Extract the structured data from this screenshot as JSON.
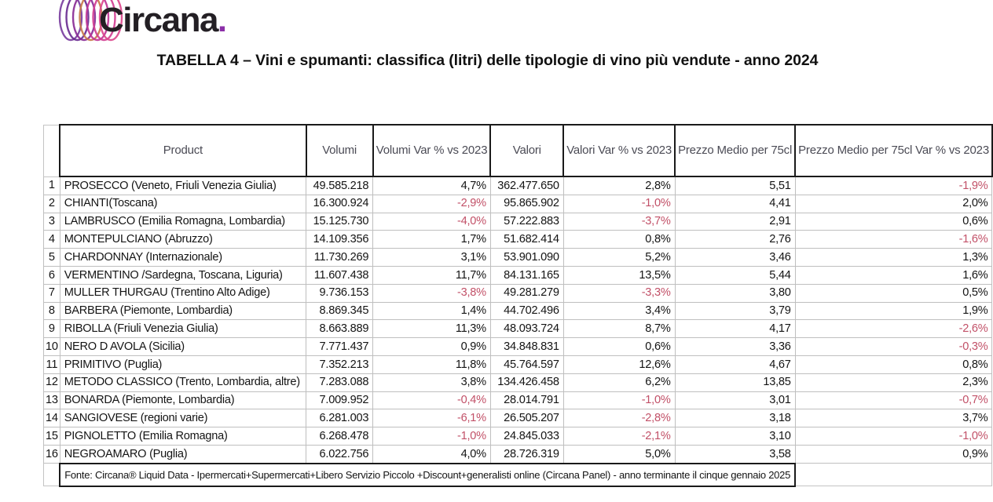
{
  "logo": {
    "brand": "Circana",
    "dot": ".",
    "ring_colors": [
      "#7b3fa0",
      "#6a2c91",
      "#8a2d96",
      "#c87a4a",
      "#c13697",
      "#d13f93",
      "#dc4a8e"
    ],
    "text_color": "#231f24",
    "dot_color": "#8b2fa8"
  },
  "title": "TABELLA 4 – Vini e spumanti: classifica (litri) delle tipologie di vino più vendute - anno 2024",
  "colors": {
    "negative_value": "#c25168",
    "header_text": "#4b4b55",
    "grid_line": "#bfbfbf",
    "heavy_border": "#1a1a1a"
  },
  "table": {
    "columns": [
      "Product",
      "Volumi",
      "Volumi Var % vs 2023",
      "Valori",
      "Valori Var % vs 2023",
      "Prezzo Medio per 75cl",
      "Prezzo Medio per 75cl Var % vs 2023"
    ],
    "rows": [
      {
        "rank": "1",
        "product": "PROSECCO  (Veneto, Friuli Venezia Giulia)",
        "volumi": "49.585.218",
        "volumi_var": "4,7%",
        "valori": "362.477.650",
        "valori_var": "2,8%",
        "prezzo": "5,51",
        "prezzo_var": "-1,9%"
      },
      {
        "rank": "2",
        "product": "CHIANTI(Toscana)",
        "volumi": "16.300.924",
        "volumi_var": "-2,9%",
        "valori": "95.865.902",
        "valori_var": "-1,0%",
        "prezzo": "4,41",
        "prezzo_var": "2,0%"
      },
      {
        "rank": "3",
        "product": "LAMBRUSCO (Emilia Romagna, Lombardia)",
        "volumi": "15.125.730",
        "volumi_var": "-4,0%",
        "valori": "57.222.883",
        "valori_var": "-3,7%",
        "prezzo": "2,91",
        "prezzo_var": "0,6%"
      },
      {
        "rank": "4",
        "product": "MONTEPULCIANO (Abruzzo)",
        "volumi": "14.109.356",
        "volumi_var": "1,7%",
        "valori": "51.682.414",
        "valori_var": "0,8%",
        "prezzo": "2,76",
        "prezzo_var": "-1,6%"
      },
      {
        "rank": "5",
        "product": "CHARDONNAY (Internazionale)",
        "volumi": "11.730.269",
        "volumi_var": "3,1%",
        "valori": "53.901.090",
        "valori_var": "5,2%",
        "prezzo": "3,46",
        "prezzo_var": "1,3%"
      },
      {
        "rank": "6",
        "product": "VERMENTINO /Sardegna, Toscana, Liguria)",
        "volumi": "11.607.438",
        "volumi_var": "11,7%",
        "valori": "84.131.165",
        "valori_var": "13,5%",
        "prezzo": "5,44",
        "prezzo_var": "1,6%"
      },
      {
        "rank": "7",
        "product": "MULLER THURGAU (Trentino Alto Adige)",
        "volumi": "9.736.153",
        "volumi_var": "-3,8%",
        "valori": "49.281.279",
        "valori_var": "-3,3%",
        "prezzo": "3,80",
        "prezzo_var": "0,5%"
      },
      {
        "rank": "8",
        "product": "BARBERA (Piemonte, Lombardia)",
        "volumi": "8.869.345",
        "volumi_var": "1,4%",
        "valori": "44.702.496",
        "valori_var": "3,4%",
        "prezzo": "3,79",
        "prezzo_var": "1,9%"
      },
      {
        "rank": "9",
        "product": "RIBOLLA (Friuli Venezia Giulia)",
        "volumi": "8.663.889",
        "volumi_var": "11,3%",
        "valori": "48.093.724",
        "valori_var": "8,7%",
        "prezzo": "4,17",
        "prezzo_var": "-2,6%"
      },
      {
        "rank": "10",
        "product": "NERO D AVOLA (Sicilia)",
        "volumi": "7.771.437",
        "volumi_var": "0,9%",
        "valori": "34.848.831",
        "valori_var": "0,6%",
        "prezzo": "3,36",
        "prezzo_var": "-0,3%"
      },
      {
        "rank": "11",
        "product": "PRIMITIVO (Puglia)",
        "volumi": "7.352.213",
        "volumi_var": "11,8%",
        "valori": "45.764.597",
        "valori_var": "12,6%",
        "prezzo": "4,67",
        "prezzo_var": "0,8%"
      },
      {
        "rank": "12",
        "product": "METODO CLASSICO (Trento, Lombardia, altre)",
        "volumi": "7.283.088",
        "volumi_var": "3,8%",
        "valori": "134.426.458",
        "valori_var": "6,2%",
        "prezzo": "13,85",
        "prezzo_var": "2,3%"
      },
      {
        "rank": "13",
        "product": "BONARDA (Piemonte, Lombardia)",
        "volumi": "7.009.952",
        "volumi_var": "-0,4%",
        "valori": "28.014.791",
        "valori_var": "-1,0%",
        "prezzo": "3,01",
        "prezzo_var": "-0,7%"
      },
      {
        "rank": "14",
        "product": "SANGIOVESE (regioni varie)",
        "volumi": "6.281.003",
        "volumi_var": "-6,1%",
        "valori": "26.505.207",
        "valori_var": "-2,8%",
        "prezzo": "3,18",
        "prezzo_var": "3,7%"
      },
      {
        "rank": "15",
        "product": "PIGNOLETTO (Emilia Romagna)",
        "volumi": "6.268.478",
        "volumi_var": "-1,0%",
        "valori": "24.845.033",
        "valori_var": "-2,1%",
        "prezzo": "3,10",
        "prezzo_var": "-1,0%"
      },
      {
        "rank": "16",
        "product": "NEGROAMARO (Puglia)",
        "volumi": "6.022.756",
        "volumi_var": "4,0%",
        "valori": "28.726.319",
        "valori_var": "5,0%",
        "prezzo": "3,58",
        "prezzo_var": "0,9%"
      }
    ],
    "footer": "Fonte: Circana® Liquid Data - Ipermercati+Supermercati+Libero Servizio Piccolo +Discount+generalisti online (Circana Panel) - anno terminante il cinque gennaio 2025"
  }
}
